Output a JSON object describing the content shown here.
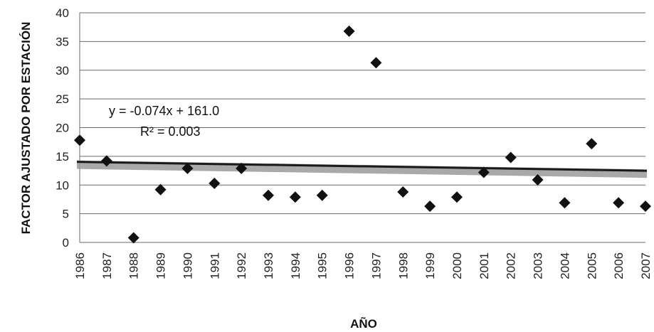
{
  "chart_data": {
    "type": "scatter",
    "title": "",
    "xlabel": "AÑO",
    "ylabel": "FACTOR AJUSTADO POR ESTACIÓN",
    "ylim": [
      0,
      40
    ],
    "yticks": [
      "0",
      "5",
      "10",
      "15",
      "20",
      "25",
      "30",
      "35",
      "40"
    ],
    "x": [
      "1986",
      "1987",
      "1988",
      "1989",
      "1990",
      "1991",
      "1992",
      "1993",
      "1994",
      "1995",
      "1996",
      "1997",
      "1998",
      "1999",
      "2000",
      "2001",
      "2002",
      "2003",
      "2004",
      "2005",
      "2006",
      "2007"
    ],
    "y": [
      17.8,
      14.2,
      0.8,
      9.2,
      12.9,
      10.3,
      12.9,
      8.2,
      7.9,
      8.2,
      36.8,
      31.3,
      8.8,
      6.3,
      7.9,
      12.2,
      14.8,
      10.9,
      6.9,
      17.2,
      6.9,
      6.3
    ],
    "trendline": {
      "equation": "y = -0.074x + 161.0",
      "r2": "R² = 0.003",
      "slope": -0.074,
      "intercept": 161.0
    },
    "grid": true,
    "marker": "diamond",
    "colors": {
      "marker": "#111111",
      "trend": "#1a1a1a",
      "band": "#9a9a9a",
      "grid": "#6a6a6a"
    }
  }
}
